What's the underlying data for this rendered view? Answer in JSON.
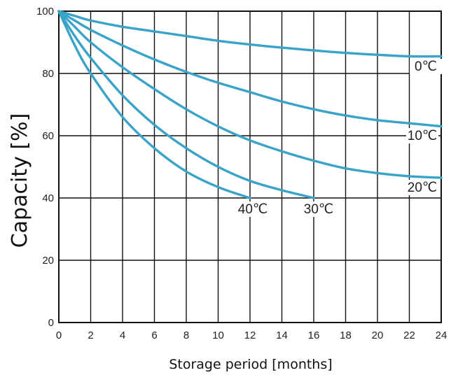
{
  "chart_data": {
    "type": "line",
    "xlabel": "Storage period [months]",
    "ylabel": "Capacity [%]",
    "xlim": [
      0,
      24
    ],
    "ylim": [
      0,
      100
    ],
    "x_ticks": [
      "0",
      "2",
      "4",
      "6",
      "8",
      "10",
      "12",
      "14",
      "16",
      "18",
      "20",
      "22",
      "24"
    ],
    "y_ticks": [
      "0",
      "20",
      "40",
      "60",
      "80",
      "100"
    ],
    "grid": true,
    "series_color": "#3aa3c8",
    "series": [
      {
        "name": "0℃",
        "x": [
          0,
          1,
          2,
          4,
          6,
          8,
          10,
          12,
          14,
          16,
          18,
          20,
          22,
          24
        ],
        "y": [
          100,
          98.5,
          97,
          95,
          93.5,
          92,
          90.5,
          89.3,
          88.3,
          87.4,
          86.6,
          86,
          85.5,
          85.5
        ]
      },
      {
        "name": "10℃",
        "x": [
          0,
          1,
          2,
          4,
          6,
          8,
          10,
          12,
          14,
          16,
          18,
          20,
          22,
          24
        ],
        "y": [
          100,
          97,
          94,
          89,
          84.5,
          80.5,
          77,
          74,
          71,
          68.5,
          66.5,
          65,
          64,
          63
        ]
      },
      {
        "name": "20℃",
        "x": [
          0,
          1,
          2,
          4,
          6,
          8,
          10,
          12,
          14,
          16,
          18,
          20,
          22,
          24
        ],
        "y": [
          100,
          95,
          90,
          82,
          75,
          68.5,
          63,
          58.5,
          55,
          52,
          49.5,
          48,
          47,
          46.5
        ]
      },
      {
        "name": "30℃",
        "x": [
          0,
          1,
          2,
          4,
          6,
          8,
          10,
          12,
          14,
          16
        ],
        "y": [
          100,
          92,
          85,
          73,
          63.5,
          56,
          50,
          45.5,
          42.5,
          40
        ]
      },
      {
        "name": "40℃",
        "x": [
          0,
          1,
          2,
          4,
          6,
          8,
          10,
          12
        ],
        "y": [
          100,
          89,
          80,
          66,
          56,
          48.5,
          43.5,
          40
        ]
      }
    ]
  }
}
